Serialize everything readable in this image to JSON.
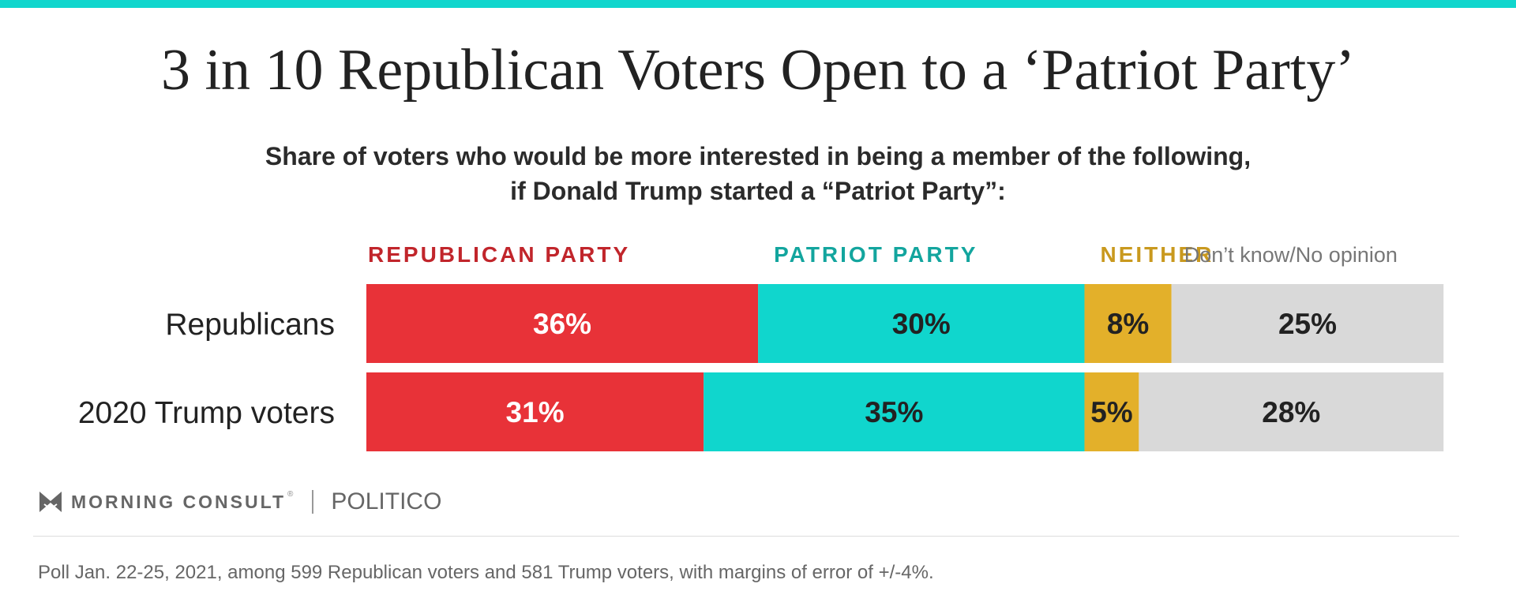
{
  "title": "3 in 10 Republican Voters Open to a ‘Patriot Party’",
  "subtitle_line1": "Share of voters who would be more interested in being a member of the following,",
  "subtitle_line2": "if Donald Trump started a “Patriot Party”:",
  "colors": {
    "top_bar": "#10d6cd",
    "republican": "#e83238",
    "patriot": "#10d6cd",
    "neither": "#e3b02a",
    "dont_know": "#d9d9d9"
  },
  "chart_data": {
    "type": "bar",
    "orientation": "horizontal",
    "stacked": true,
    "percent": true,
    "xlim": [
      0,
      100
    ],
    "categories": [
      "Republicans",
      "2020 Trump voters"
    ],
    "series": [
      {
        "name": "REPUBLICAN PARTY",
        "color": "#e83238",
        "legend_color": "#c1252b",
        "label_color": "#ffffff",
        "values": [
          36,
          31
        ],
        "labels": [
          "36%",
          "31%"
        ]
      },
      {
        "name": "PATRIOT PARTY",
        "color": "#10d6cd",
        "legend_color": "#13a59e",
        "label_color": "#222222",
        "values": [
          30,
          35
        ],
        "labels": [
          "30%",
          "35%"
        ]
      },
      {
        "name": "NEITHER",
        "color": "#e3b02a",
        "legend_color": "#c9991e",
        "label_color": "#222222",
        "values": [
          8,
          5
        ],
        "labels": [
          "8%",
          "5%"
        ]
      },
      {
        "name": "Don’t know/No opinion",
        "color": "#d9d9d9",
        "legend_color": "#777777",
        "label_color": "#222222",
        "values": [
          25,
          28
        ],
        "labels": [
          "25%",
          "28%"
        ]
      }
    ]
  },
  "branding": {
    "morning_consult": "MORNING CONSULT",
    "registered_mark": "®",
    "politico": "POLITICO"
  },
  "footnote": "Poll Jan. 22-25, 2021, among 599 Republican voters and 581 Trump voters, with margins of error of +/-4%."
}
